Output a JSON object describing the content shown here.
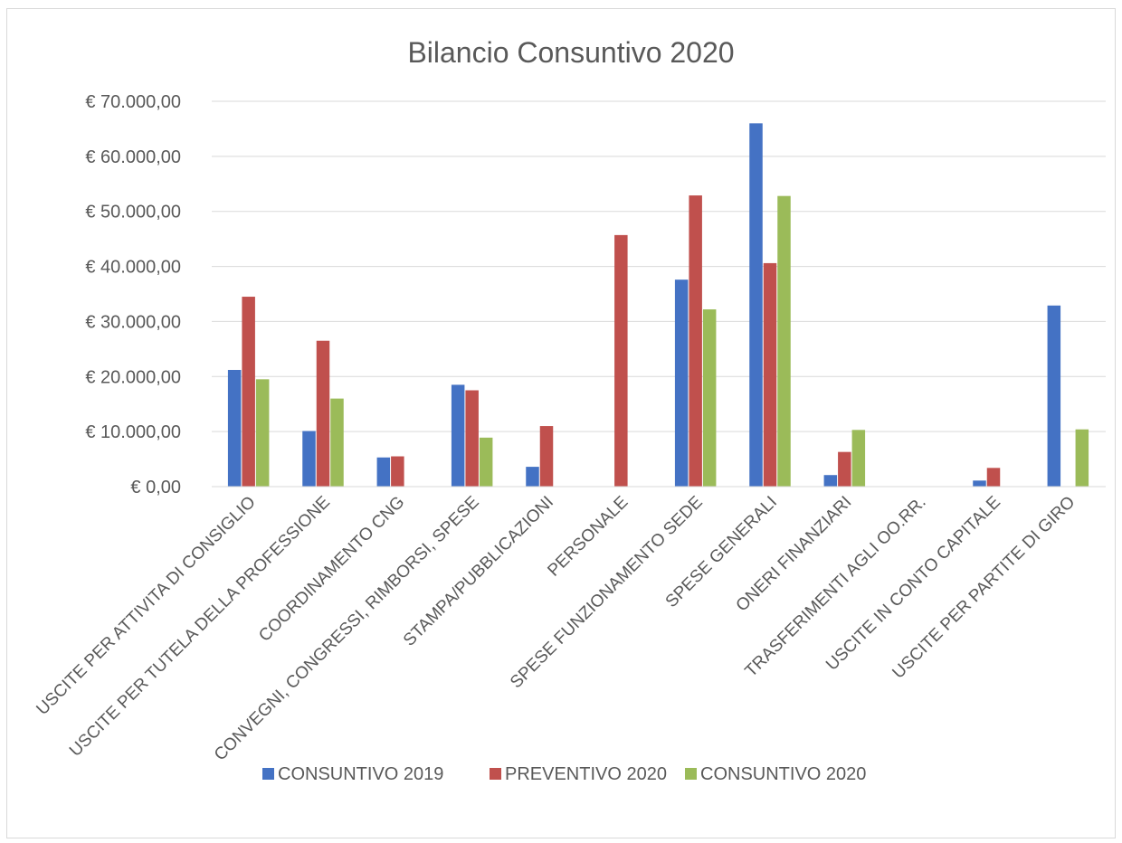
{
  "chart_data": {
    "type": "bar",
    "title": "Bilancio Consuntivo 2020",
    "xlabel": "",
    "ylabel": "",
    "ylim": [
      0,
      70000
    ],
    "yticks": [
      0,
      10000,
      20000,
      30000,
      40000,
      50000,
      60000,
      70000
    ],
    "ytick_labels": [
      "€ 0,00",
      "€ 10.000,00",
      "€ 20.000,00",
      "€ 30.000,00",
      "€ 40.000,00",
      "€ 50.000,00",
      "€ 60.000,00",
      "€ 70.000,00"
    ],
    "grid": true,
    "legend_position": "bottom",
    "categories": [
      "USCITE PER ATTIVITA DI CONSIGLIO",
      "USCITE PER TUTELA DELLA PROFESSIONE",
      "COORDINAMENTO CNG",
      "CONVEGNI, CONGRESSI, RIMBORSI, SPESE",
      "STAMPA/PUBBLICAZIONI",
      "PERSONALE",
      "SPESE FUNZIONAMENTO SEDE",
      "SPESE GENERALI",
      "ONERI FINANZIARI",
      "TRASFERIMENTI AGLI OO.RR.",
      "USCITE IN CONTO CAPITALE",
      "USCITE PER PARTITE DI GIRO"
    ],
    "series": [
      {
        "name": "CONSUNTIVO 2019",
        "color": "#4472c4",
        "values": [
          21200,
          10100,
          5300,
          18500,
          3600,
          0,
          37600,
          66000,
          2100,
          0,
          1100,
          32900
        ]
      },
      {
        "name": "PREVENTIVO 2020",
        "color": "#c0504d",
        "values": [
          34500,
          26500,
          5500,
          17500,
          11000,
          45700,
          52900,
          40600,
          6300,
          0,
          3400,
          0
        ]
      },
      {
        "name": "CONSUNTIVO 2020",
        "color": "#9bbb59",
        "values": [
          19500,
          16000,
          0,
          8900,
          0,
          0,
          32200,
          52800,
          10300,
          0,
          0,
          10400
        ]
      }
    ]
  }
}
